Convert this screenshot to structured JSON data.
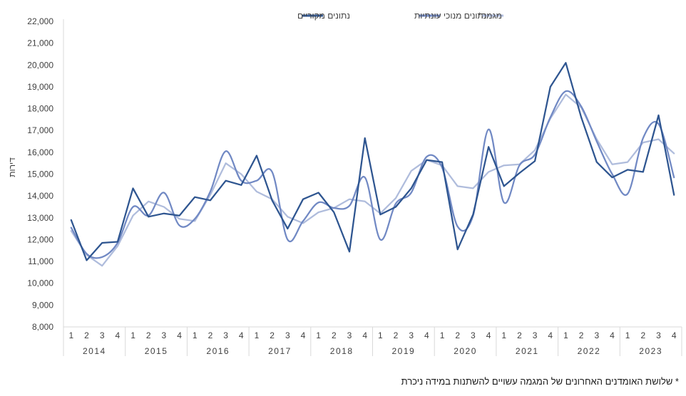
{
  "chart_data": {
    "type": "line",
    "title": "",
    "ylabel": "דירות",
    "xlabel": "",
    "ylim": [
      8000,
      22000
    ],
    "yticks": [
      8000,
      9000,
      10000,
      11000,
      12000,
      13000,
      14000,
      15000,
      16000,
      17000,
      18000,
      19000,
      20000,
      21000,
      22000
    ],
    "ytick_labels": [
      "8,000",
      "9,000",
      "10,000",
      "11,000",
      "12,000",
      "13,000",
      "14,000",
      "15,000",
      "16,000",
      "17,000",
      "18,000",
      "19,000",
      "20,000",
      "21,000",
      "22,000"
    ],
    "years": [
      "2014",
      "2015",
      "2016",
      "2017",
      "2018",
      "2019",
      "2020",
      "2021",
      "2022",
      "2023"
    ],
    "quarters": [
      "1",
      "2",
      "3",
      "4"
    ],
    "legend_position": "top-center",
    "series": [
      {
        "name": "נתונים מקוריים",
        "color": "#2e5590",
        "smooth": false,
        "values": [
          12900,
          11050,
          11850,
          11900,
          14350,
          13050,
          13200,
          13100,
          13950,
          13800,
          14700,
          14500,
          15850,
          13800,
          12500,
          13850,
          14150,
          13250,
          11450,
          16650,
          13150,
          13500,
          14350,
          15650,
          15550,
          11550,
          13150,
          16250,
          14450,
          15050,
          15600,
          19000,
          20100,
          17600,
          15550,
          14850,
          15200,
          15100,
          17700,
          14050
        ]
      },
      {
        "name": "נתונים מנוכי עונתיות",
        "color": "#7189c4",
        "smooth": true,
        "values": [
          12550,
          11350,
          11200,
          11850,
          13500,
          13100,
          14150,
          12650,
          12950,
          14200,
          16050,
          14700,
          14700,
          15100,
          12000,
          12850,
          13700,
          13450,
          13550,
          14850,
          12000,
          13650,
          14150,
          15800,
          15300,
          12600,
          13100,
          17050,
          13700,
          15400,
          15900,
          17600,
          18800,
          18100,
          16500,
          15000,
          14100,
          16650,
          17300,
          14850
        ]
      },
      {
        "name": "מגמה*",
        "color": "#afbcdc",
        "smooth": false,
        "values": [
          12400,
          11300,
          10800,
          11700,
          13100,
          13750,
          13500,
          12950,
          12850,
          14050,
          15500,
          15000,
          14200,
          13850,
          13050,
          12750,
          13250,
          13450,
          13850,
          13750,
          13200,
          13900,
          15150,
          15650,
          15400,
          14450,
          14350,
          15100,
          15400,
          15450,
          16100,
          17550,
          18650,
          18050,
          16600,
          15450,
          15550,
          16450,
          16600,
          15950
        ]
      }
    ]
  },
  "footnote": "* שלושת האומדנים האחרונים של המגמה עשויים להשתנות במידה ניכרת"
}
